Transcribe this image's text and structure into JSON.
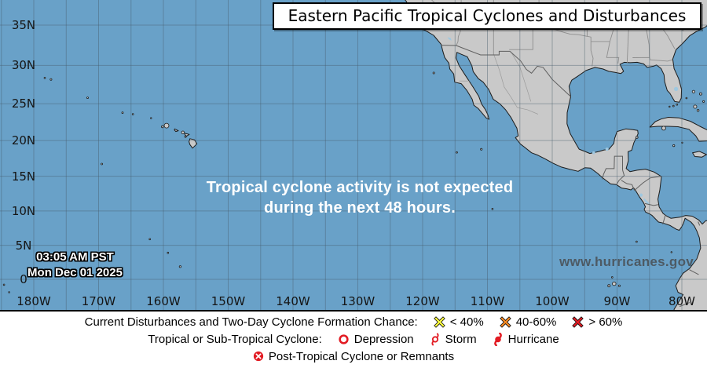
{
  "map": {
    "title": "Eastern Pacific Tropical Cyclones and Disturbances",
    "message_line1": "Tropical cyclone activity is not expected",
    "message_line2": "during the next 48 hours.",
    "timestamp_line1": "03:05 AM PST",
    "timestamp_line2": "Mon Dec 01 2025",
    "watermark": "www.hurricanes.gov",
    "lat_ticks": [
      {
        "label": "35N",
        "lat": 35
      },
      {
        "label": "30N",
        "lat": 30
      },
      {
        "label": "25N",
        "lat": 25
      },
      {
        "label": "20N",
        "lat": 20
      },
      {
        "label": "15N",
        "lat": 15
      },
      {
        "label": "10N",
        "lat": 10
      },
      {
        "label": "5N",
        "lat": 5
      },
      {
        "label": "0",
        "lat": 0
      }
    ],
    "lon_ticks": [
      {
        "label": "180W",
        "lon": -180
      },
      {
        "label": "170W",
        "lon": -170
      },
      {
        "label": "160W",
        "lon": -160
      },
      {
        "label": "150W",
        "lon": -150
      },
      {
        "label": "140W",
        "lon": -140
      },
      {
        "label": "130W",
        "lon": -130
      },
      {
        "label": "120W",
        "lon": -120
      },
      {
        "label": "110W",
        "lon": -110
      },
      {
        "label": "100W",
        "lon": -100
      },
      {
        "label": "90W",
        "lon": -90
      },
      {
        "label": "80W",
        "lon": -80
      }
    ],
    "colors": {
      "ocean": "#69a1c8",
      "land": "#c9c9c9",
      "lake": "#9fc8e0",
      "coast": "#1c1c1c",
      "grid": "rgba(70,90,105,0.42)",
      "state": "#8e8e8e",
      "mex_state": "#9b9b9b",
      "country": "#5f5f5f"
    }
  },
  "legend": {
    "row1": {
      "label": "Current Disturbances and Two-Day Cyclone Formation Chance:",
      "items": [
        {
          "symbol": "x-icon",
          "color": "#fdfd3d",
          "text": "< 40%"
        },
        {
          "symbol": "x-icon",
          "color": "#f6881f",
          "text": "40-60%"
        },
        {
          "symbol": "x-icon",
          "color": "#e21b23",
          "text": "> 60%"
        }
      ]
    },
    "row2": {
      "label": "Tropical or Sub-Tropical Cyclone:",
      "items": [
        {
          "symbol": "depression-icon",
          "color": "#e21b23",
          "text": "Depression"
        },
        {
          "symbol": "storm-icon",
          "color": "#e21b23",
          "text": "Storm"
        },
        {
          "symbol": "hurricane-icon",
          "color": "#e21b23",
          "text": "Hurricane"
        }
      ]
    },
    "row3": {
      "items": [
        {
          "symbol": "post-tropical-icon",
          "color": "#e21b23",
          "text": "Post-Tropical Cyclone or Remnants"
        }
      ]
    }
  }
}
